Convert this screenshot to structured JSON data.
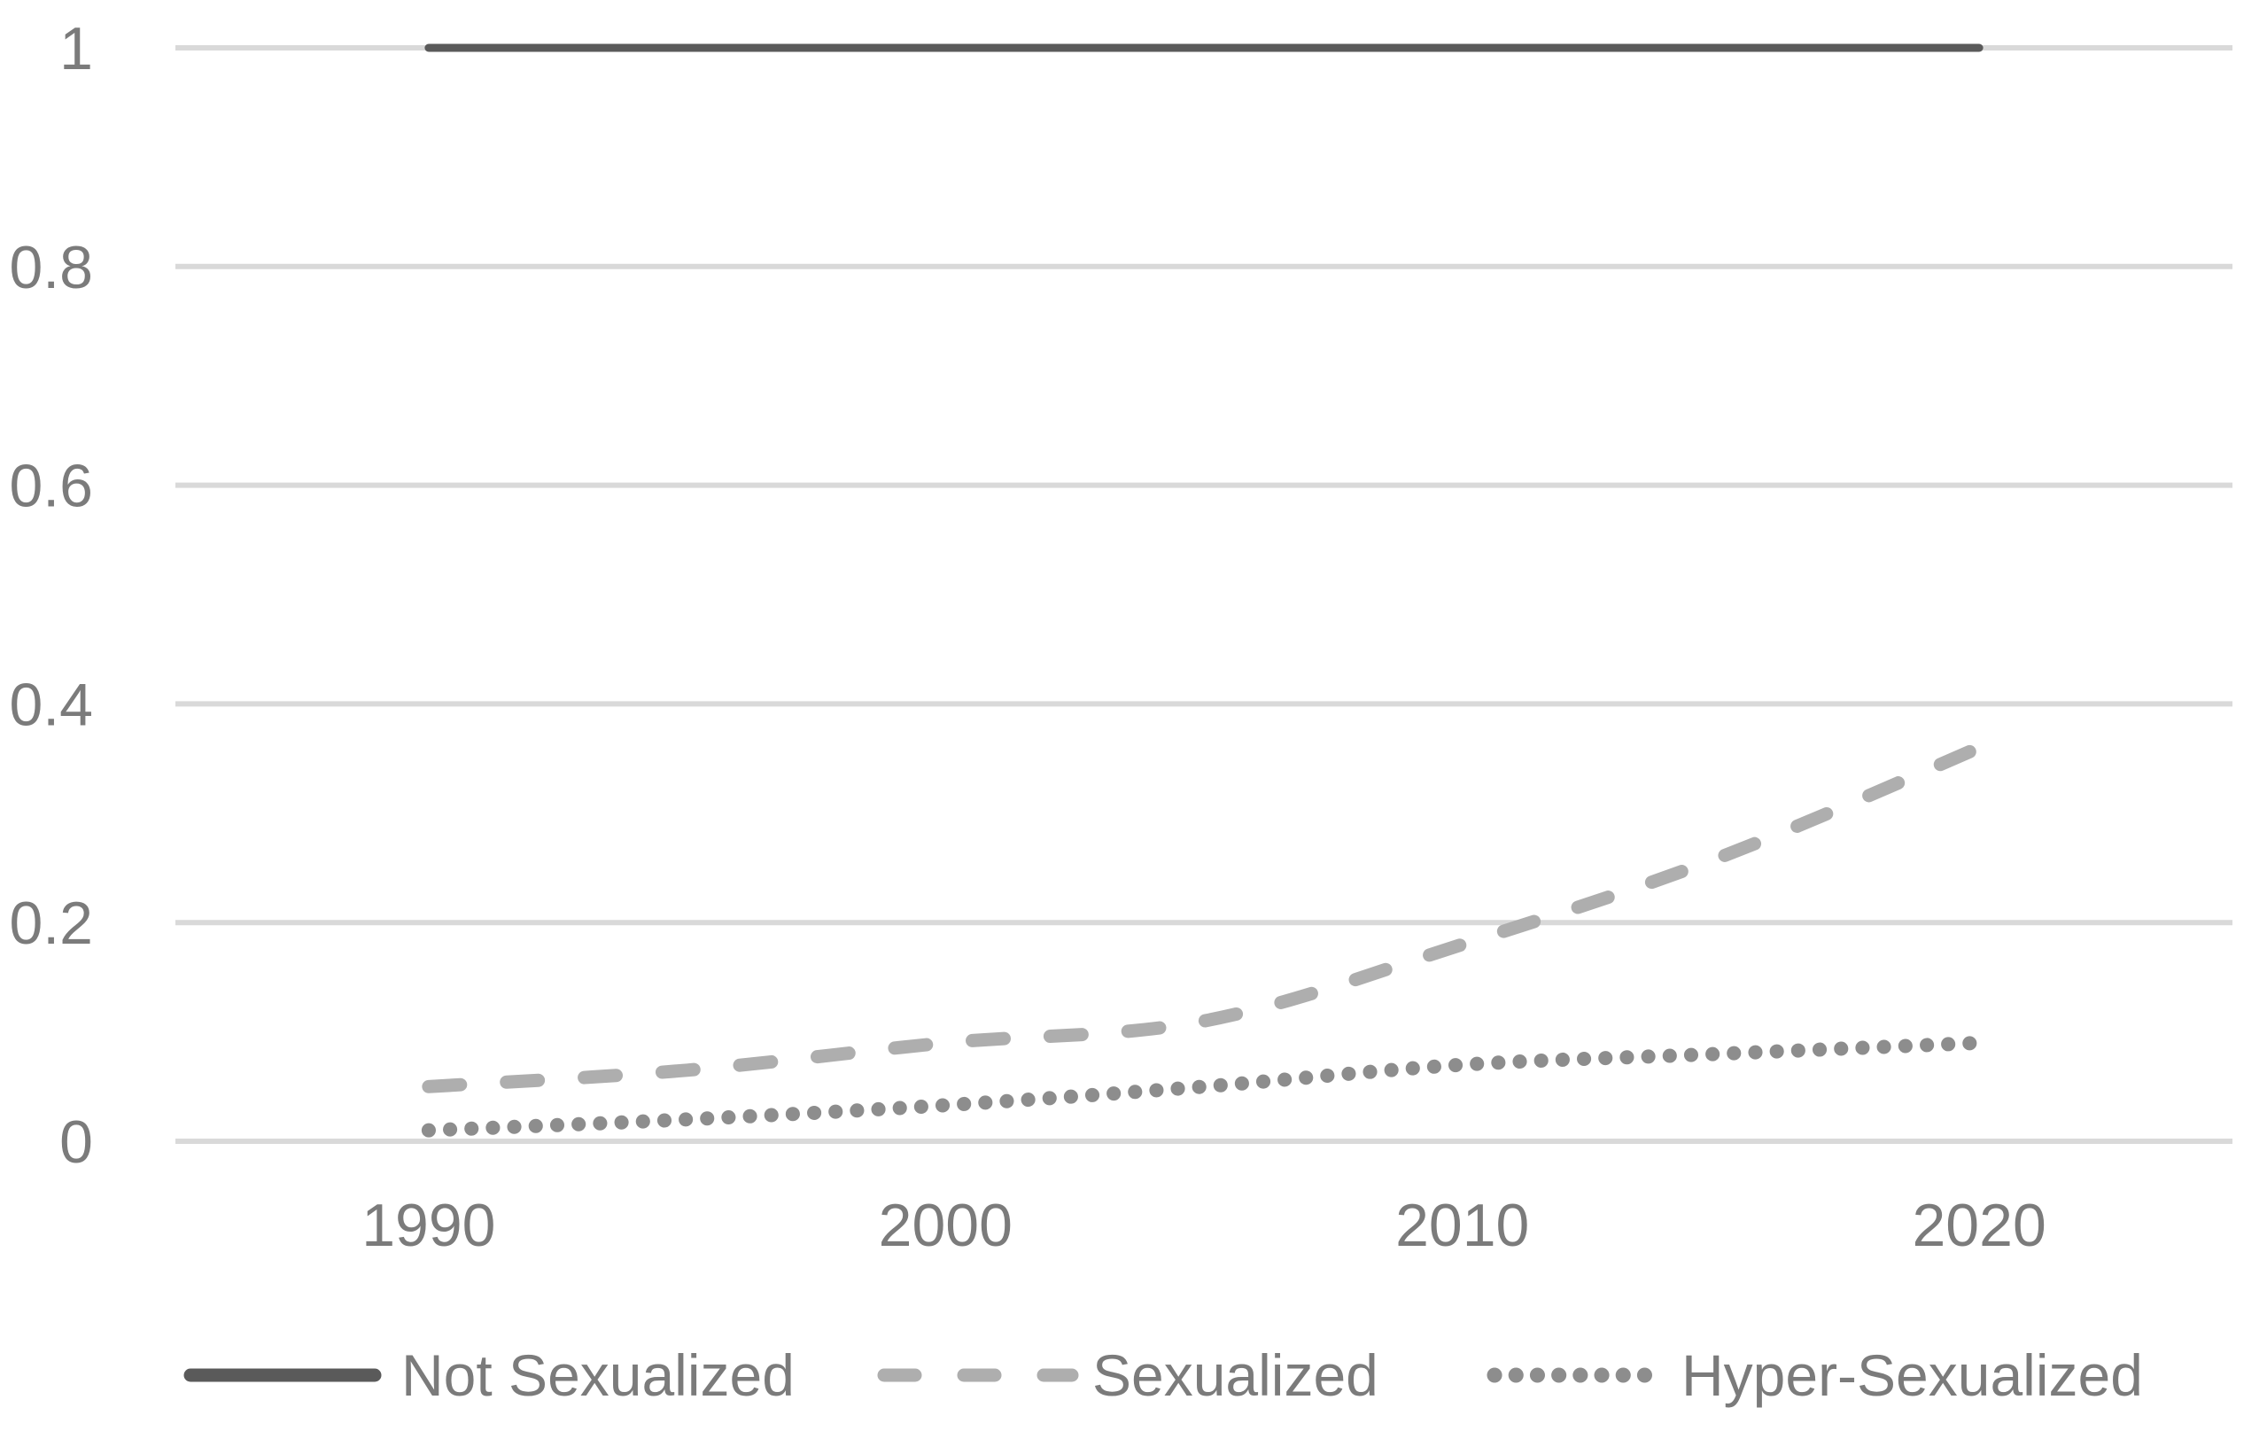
{
  "chart_data": {
    "type": "line",
    "x": [
      1990,
      1995,
      2000,
      2005,
      2010,
      2015,
      2020
    ],
    "series": [
      {
        "name": "Not Sexualized",
        "style": "solid",
        "color": "#5a5a5a",
        "values": [
          1.0,
          1.0,
          1.0,
          1.0,
          1.0,
          1.0,
          1.0
        ]
      },
      {
        "name": "Sexualized",
        "style": "dashed",
        "color": "#aeaeae",
        "values": [
          0.05,
          0.065,
          0.09,
          0.11,
          0.18,
          0.26,
          0.36
        ]
      },
      {
        "name": "Hyper-Sexualized",
        "style": "dotted",
        "color": "#8d8d8d",
        "values": [
          0.01,
          0.02,
          0.033,
          0.05,
          0.07,
          0.08,
          0.09
        ]
      }
    ],
    "title": "",
    "xlabel": "",
    "ylabel": "",
    "ylim": [
      0,
      1
    ],
    "xlim": [
      1985.1,
      2024.9
    ],
    "y_ticks": [
      {
        "label": "1",
        "value": 1.0
      },
      {
        "label": "0.8",
        "value": 0.8
      },
      {
        "label": "0.6",
        "value": 0.6
      },
      {
        "label": "0.4",
        "value": 0.4
      },
      {
        "label": "0.2",
        "value": 0.2
      },
      {
        "label": "0",
        "value": 0.0
      }
    ],
    "x_ticks": [
      {
        "label": "1990",
        "value": 1990
      },
      {
        "label": "2000",
        "value": 2000
      },
      {
        "label": "2010",
        "value": 2010
      },
      {
        "label": "2020",
        "value": 2020
      }
    ],
    "grid": "horizontal",
    "legend_position": "bottom"
  },
  "styles": {
    "background": "#ffffff",
    "grid_color": "#d9d9d9",
    "label_color": "#7b7b7b"
  }
}
